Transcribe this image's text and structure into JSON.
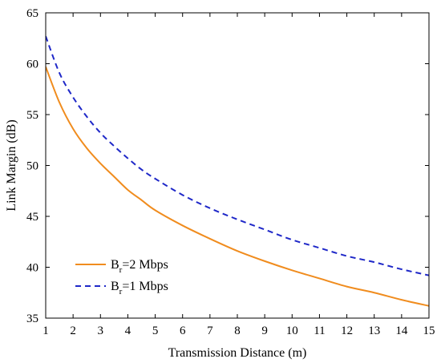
{
  "chart_data": {
    "type": "line",
    "xlabel": "Transmission Distance (m)",
    "ylabel": "Link Margin (dB)",
    "xlim": [
      1,
      15
    ],
    "ylim": [
      35,
      65
    ],
    "xticks": [
      1,
      2,
      3,
      4,
      5,
      6,
      7,
      8,
      9,
      10,
      11,
      12,
      13,
      14,
      15
    ],
    "yticks": [
      35,
      40,
      45,
      50,
      55,
      60,
      65
    ],
    "grid": false,
    "legend_position": "bottom-left",
    "series": [
      {
        "name": "B_r=2 Mbps",
        "legend_main": "B",
        "legend_sub": "r",
        "legend_rest": "=2 Mbps",
        "color": "#F08C1E",
        "line_style": "solid",
        "x": [
          1,
          1.5,
          2,
          2.5,
          3,
          3.5,
          4,
          4.5,
          5,
          6,
          7,
          8,
          9,
          10,
          11,
          12,
          13,
          14,
          15
        ],
        "y": [
          59.7,
          56.2,
          53.6,
          51.7,
          50.2,
          48.9,
          47.6,
          46.6,
          45.6,
          44.1,
          42.8,
          41.6,
          40.6,
          39.7,
          38.9,
          38.1,
          37.5,
          36.8,
          36.2
        ]
      },
      {
        "name": "B_r=1 Mbps",
        "legend_main": "B",
        "legend_sub": "r",
        "legend_rest": "=1 Mbps",
        "color": "#1F28C8",
        "line_style": "dashed",
        "x": [
          1,
          1.5,
          2,
          2.5,
          3,
          3.5,
          4,
          4.5,
          5,
          6,
          7,
          8,
          9,
          10,
          11,
          12,
          13,
          14,
          15
        ],
        "y": [
          62.7,
          59.1,
          56.7,
          54.8,
          53.2,
          51.9,
          50.7,
          49.6,
          48.7,
          47.1,
          45.8,
          44.7,
          43.7,
          42.7,
          41.9,
          41.1,
          40.5,
          39.8,
          39.2
        ]
      }
    ]
  }
}
